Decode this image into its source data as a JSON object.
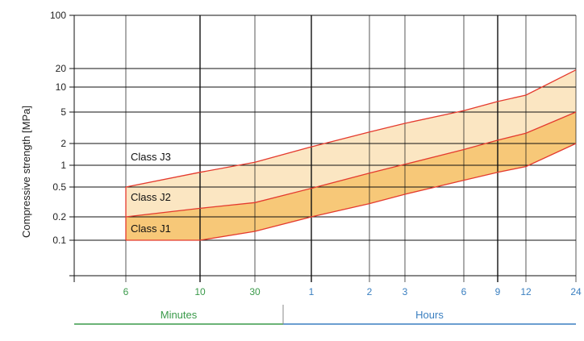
{
  "chart_data": {
    "type": "area",
    "title": "",
    "ylabel": "Compressive strength [MPa]",
    "y_scale": "log",
    "y_ticks": [
      "100",
      "20",
      "10",
      "5",
      "2",
      "1",
      "0.5",
      "0.2",
      "0.1"
    ],
    "x_ticks": [
      {
        "label": "6",
        "group": "minutes"
      },
      {
        "label": "10",
        "group": "minutes"
      },
      {
        "label": "30",
        "group": "minutes"
      },
      {
        "label": "1",
        "group": "hours"
      },
      {
        "label": "2",
        "group": "hours"
      },
      {
        "label": "3",
        "group": "hours"
      },
      {
        "label": "6",
        "group": "hours"
      },
      {
        "label": "9",
        "group": "hours"
      },
      {
        "label": "12",
        "group": "hours"
      },
      {
        "label": "24",
        "group": "hours"
      }
    ],
    "x_groups": [
      {
        "id": "minutes",
        "label": "Minutes",
        "color": "#3a9a4a"
      },
      {
        "id": "hours",
        "label": "Hours",
        "color": "#3a7fc0"
      }
    ],
    "boundaries": {
      "upper": [
        0.5,
        0.8,
        1.1,
        1.8,
        2.8,
        3.6,
        5.2,
        6.7,
        8.0,
        19.0
      ],
      "middle": [
        0.2,
        0.26,
        0.31,
        0.48,
        0.78,
        1.03,
        1.65,
        2.2,
        2.7,
        5.0
      ],
      "lower": [
        0.1,
        0.1,
        0.13,
        0.2,
        0.3,
        0.4,
        0.62,
        0.8,
        0.96,
        2.0
      ]
    },
    "band_labels": [
      {
        "label": "Class J3"
      },
      {
        "label": "Class J2"
      },
      {
        "label": "Class J1"
      }
    ],
    "colors": {
      "band_upper": "#fbe6c2",
      "band_lower": "#f7c878",
      "boundary_line": "#e43a2e",
      "grid": "#111111"
    }
  }
}
